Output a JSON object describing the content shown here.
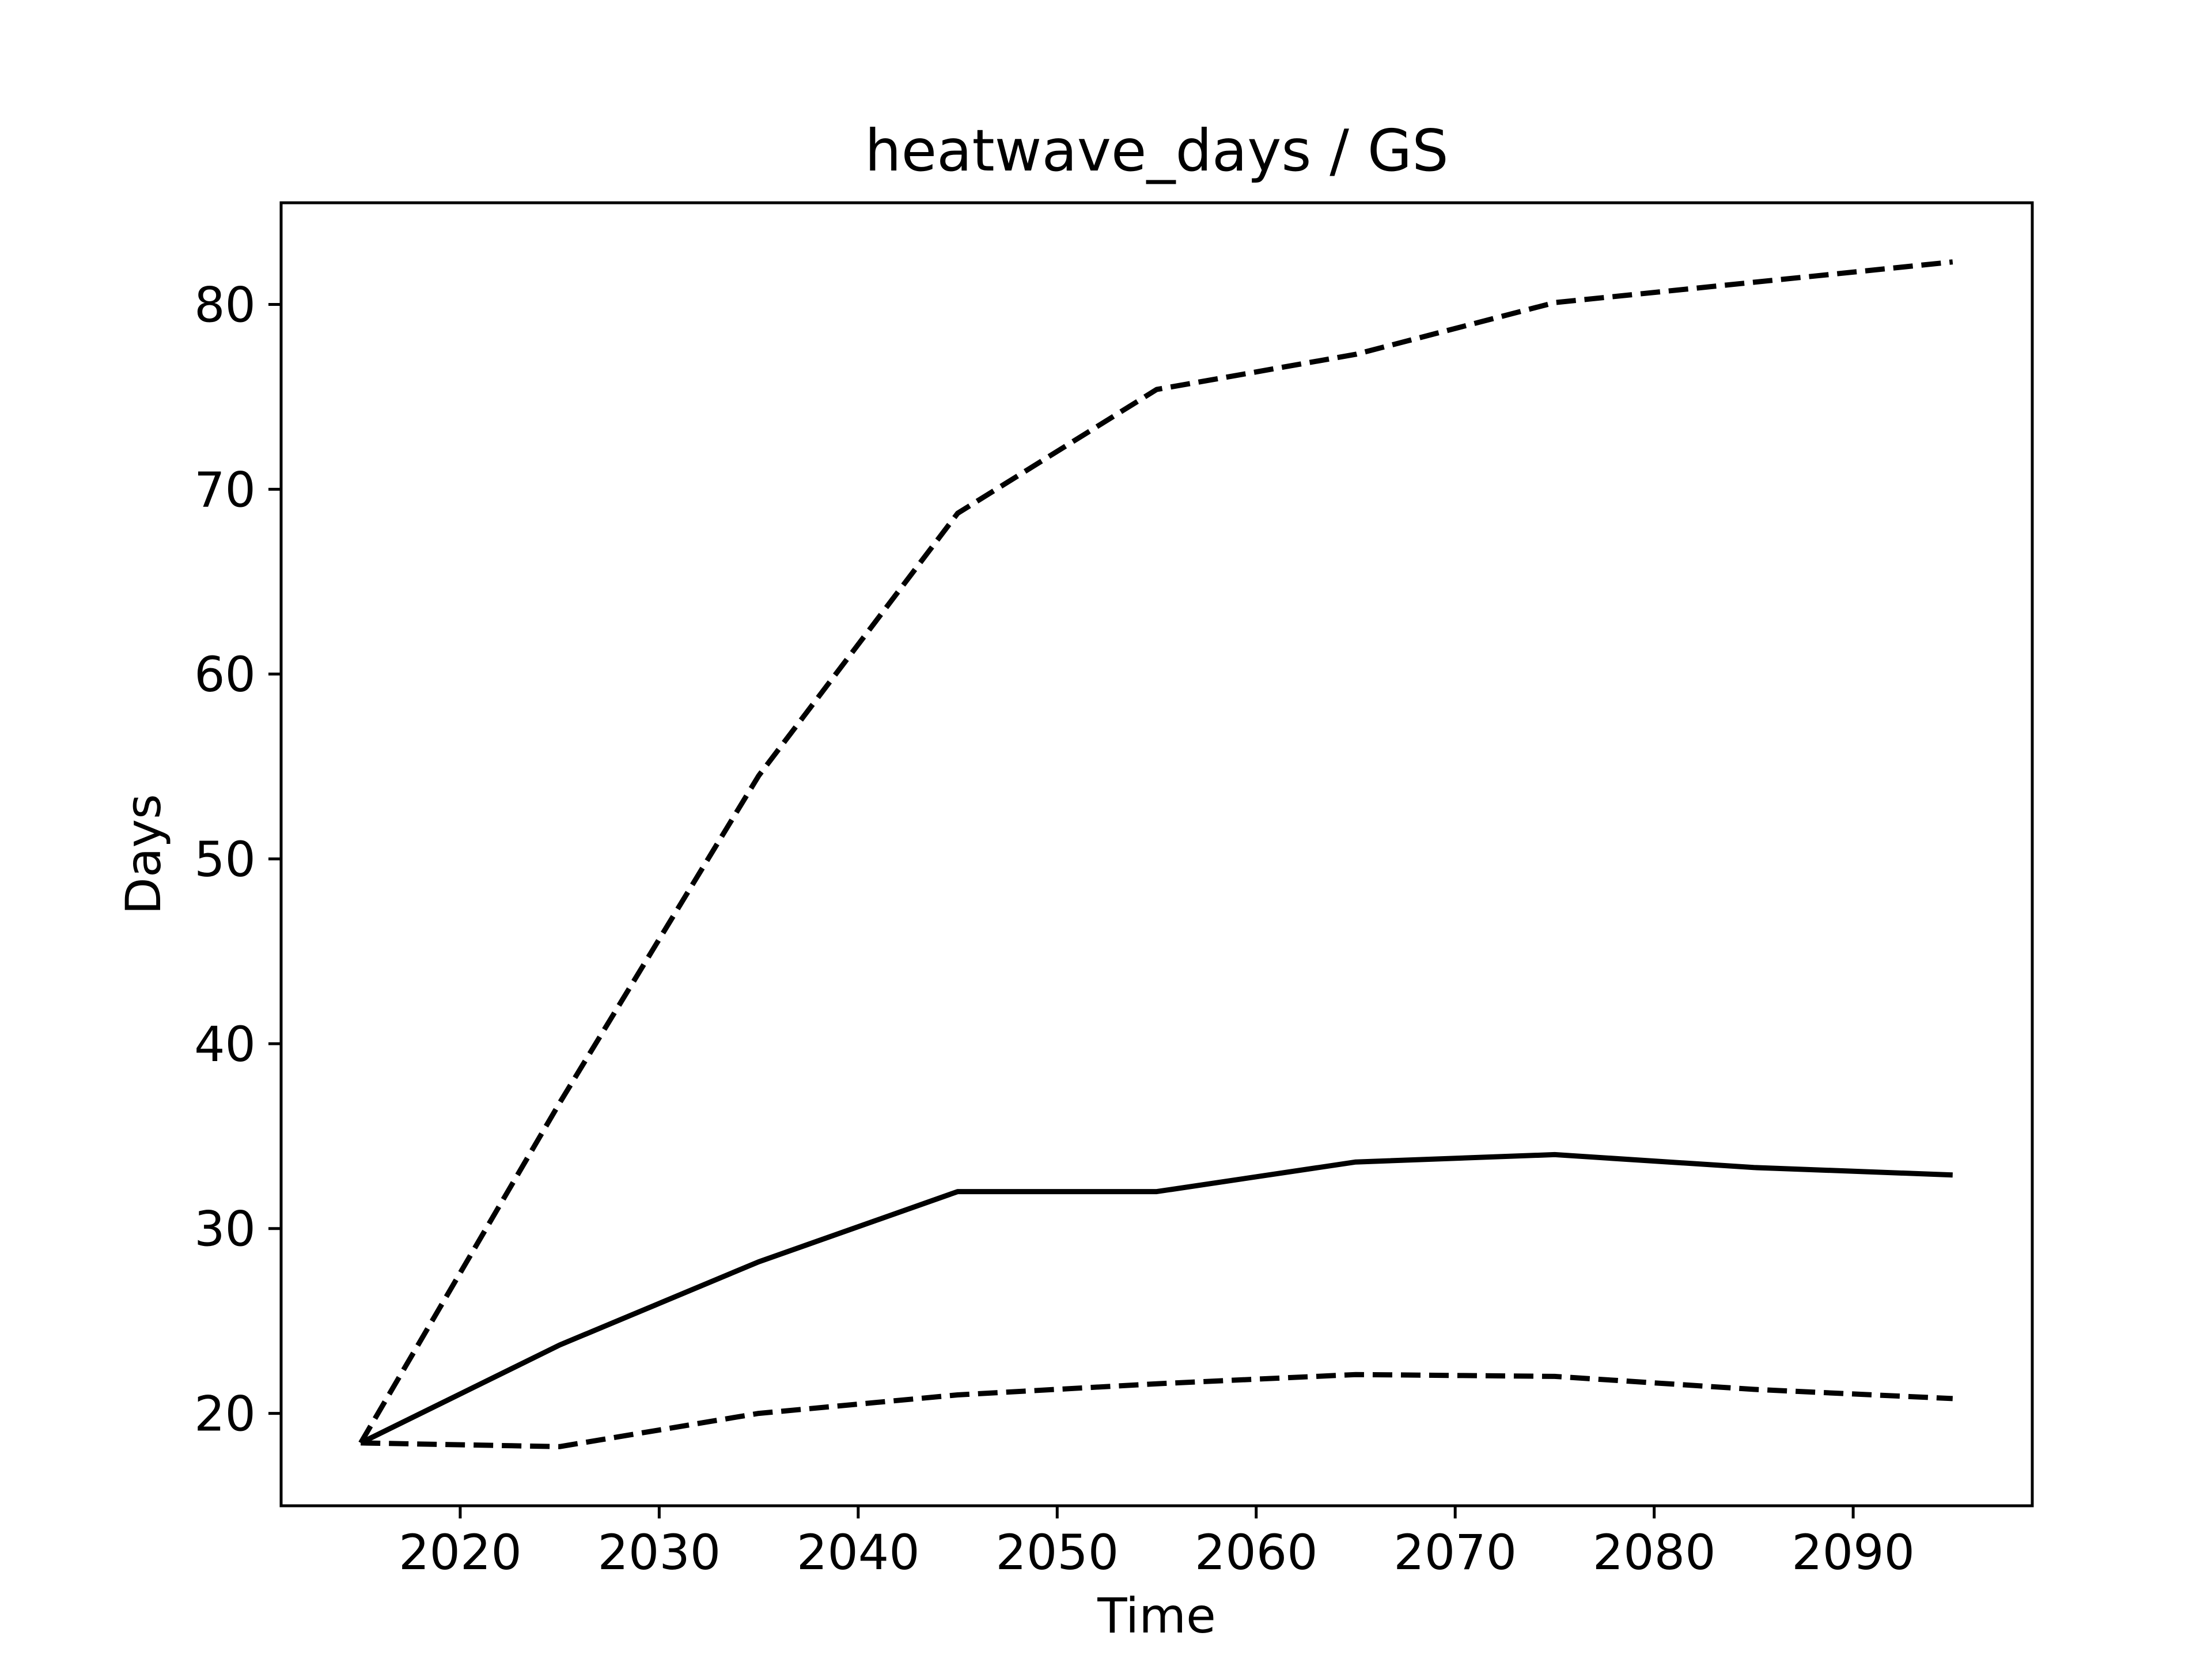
{
  "chart_data": {
    "type": "line",
    "title": "heatwave_days / GS",
    "xlabel": "Time",
    "ylabel": "Days",
    "xlim": [
      2011,
      2099
    ],
    "ylim": [
      15,
      85.5
    ],
    "xticks": [
      2020,
      2030,
      2040,
      2050,
      2060,
      2070,
      2080,
      2090
    ],
    "yticks": [
      20,
      30,
      40,
      50,
      60,
      70,
      80
    ],
    "grid": false,
    "legend": false,
    "x": [
      2015,
      2025,
      2035,
      2045,
      2055,
      2065,
      2075,
      2085,
      2095
    ],
    "series": [
      {
        "style": "solid",
        "color": "#000000",
        "values": [
          18.4,
          23.7,
          28.2,
          32.0,
          32.0,
          33.6,
          34.0,
          33.3,
          32.9
        ]
      },
      {
        "style": "dashed",
        "color": "#000000",
        "values": [
          18.4,
          36.8,
          54.5,
          68.7,
          75.4,
          77.3,
          80.1,
          81.2,
          82.3
        ]
      },
      {
        "style": "dashed",
        "color": "#000000",
        "values": [
          18.4,
          18.2,
          20.0,
          21.0,
          21.6,
          22.1,
          22.0,
          21.3,
          20.8
        ]
      }
    ]
  }
}
